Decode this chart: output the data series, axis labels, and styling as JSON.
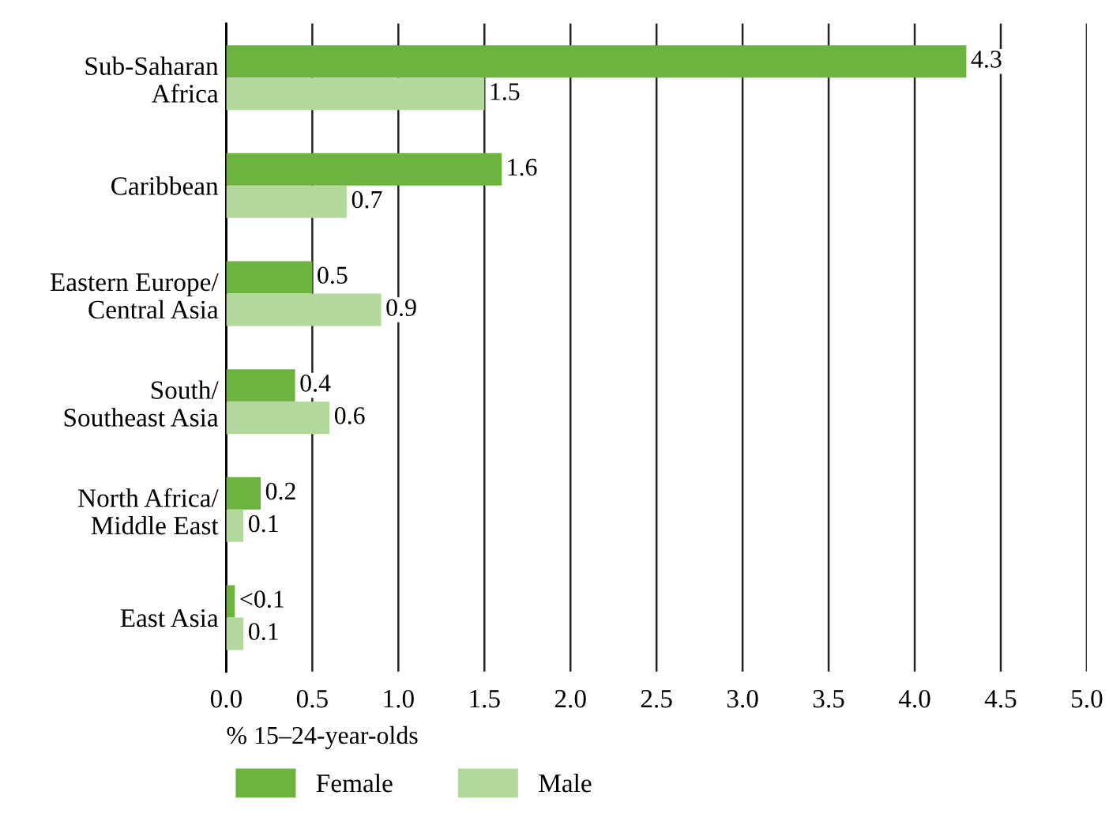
{
  "chart_data": {
    "type": "bar",
    "orientation": "horizontal",
    "categories": [
      "Sub-Saharan\nAfrica",
      "Caribbean",
      "Eastern Europe/\nCentral Asia",
      "South/\nSoutheast Asia",
      "North Africa/\nMiddle East",
      "East Asia"
    ],
    "series": [
      {
        "name": "Female",
        "color": "#6db33f",
        "values": [
          4.3,
          1.6,
          0.5,
          0.4,
          0.2,
          0.05
        ],
        "value_labels": [
          "4.3",
          "1.6",
          "0.5",
          "0.4",
          "0.2",
          "<0.1"
        ]
      },
      {
        "name": "Male",
        "color": "#b3d89c",
        "values": [
          1.5,
          0.7,
          0.9,
          0.6,
          0.1,
          0.1
        ],
        "value_labels": [
          "1.5",
          "0.7",
          "0.9",
          "0.6",
          "0.1",
          "0.1"
        ]
      }
    ],
    "xlabel": "% 15–24-year-olds",
    "xlim": [
      0,
      5
    ],
    "xticks": [
      {
        "value": 0,
        "label": "0.0"
      },
      {
        "value": 0.5,
        "label": "0.5"
      },
      {
        "value": 1,
        "label": "1.0"
      },
      1.5,
      {
        "value": 2,
        "label": "2.0"
      },
      2.5,
      {
        "value": 3,
        "label": "3.0"
      },
      3.5,
      {
        "value": 4,
        "label": "4.0"
      },
      4.5,
      {
        "value": 5,
        "label": "5.0"
      }
    ],
    "grid": "x",
    "legend": "bottom"
  }
}
